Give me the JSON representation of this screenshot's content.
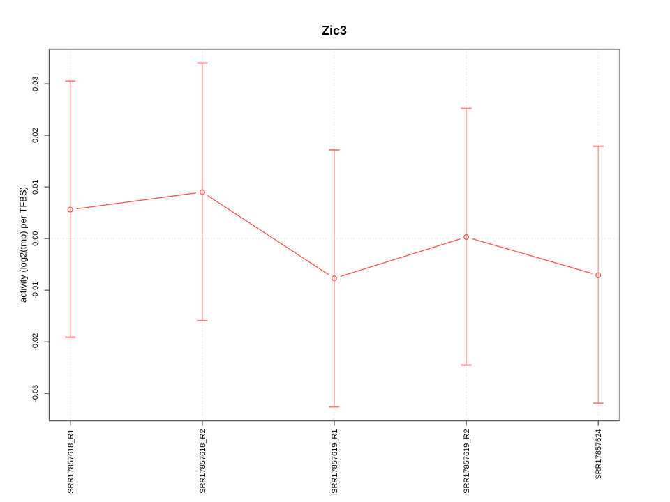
{
  "chart_data": {
    "type": "line",
    "title": "Zic3",
    "xlabel": "",
    "ylabel": "activity (log2(tmp) per TFBS)",
    "categories": [
      "SRR17857618_R1",
      "SRR17857618_R2",
      "SRR17857619_R1",
      "SRR17857619_R2",
      "SRR17857624"
    ],
    "series": [
      {
        "name": "activity",
        "values": [
          0.0056,
          0.009,
          -0.0077,
          0.0003,
          -0.0071
        ],
        "ci_upper": [
          0.0305,
          0.034,
          0.0172,
          0.0252,
          0.0179
        ],
        "ci_lower": [
          -0.0191,
          -0.0159,
          -0.0326,
          -0.0245,
          -0.0319
        ]
      }
    ],
    "yticks": [
      -0.03,
      -0.02,
      -0.01,
      0,
      0.01,
      0.02,
      0.03
    ],
    "ytick_labels": [
      "-0.03",
      "-0.02",
      "-0.01",
      "0.00",
      "0.01",
      "0.02",
      "0.03"
    ],
    "ylim": [
      -0.0353,
      0.0367
    ],
    "xlim": [
      0.84,
      5.16
    ],
    "grid": {
      "vertical_at_categories": true,
      "horizontal_at_zero": true
    },
    "legend": "none",
    "colors": {
      "series": "#f8534e",
      "errorbar": "rgba(248,83,78,0.5)",
      "errorbar_cap": "rgba(248,83,78,0.75)",
      "grid": "#d6d6d6",
      "box": "#9b9b9b",
      "axis": "#545454",
      "text": "#000000"
    }
  }
}
